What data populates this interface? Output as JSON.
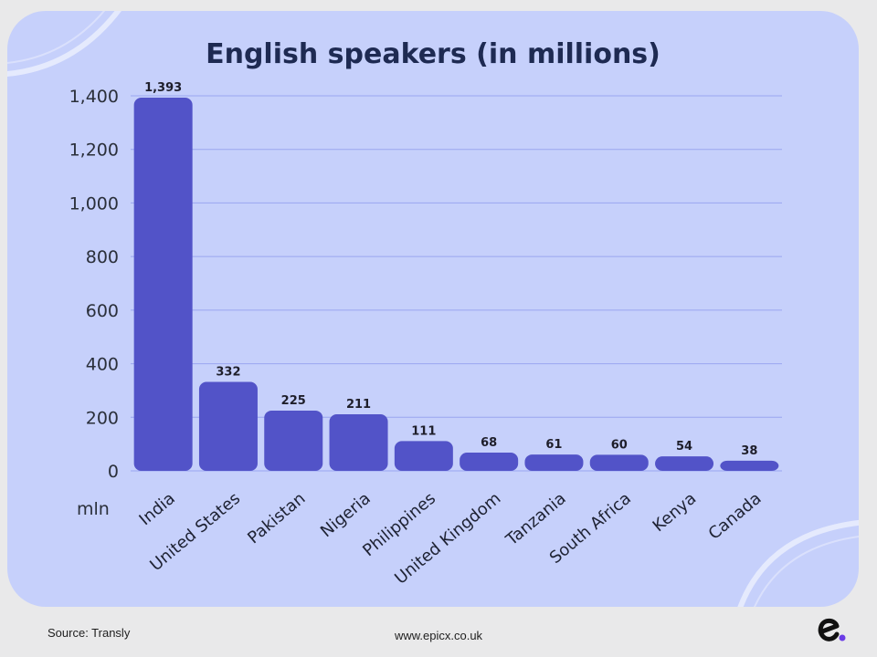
{
  "chart_data": {
    "type": "bar",
    "title": "English speakers (in millions)",
    "unit_label": "mln",
    "categories": [
      "India",
      "United States",
      "Pakistan",
      "Nigeria",
      "Philippines",
      "United Kingdom",
      "Tanzania",
      "South Africa",
      "Kenya",
      "Canada"
    ],
    "values": [
      1393,
      332,
      225,
      211,
      111,
      68,
      61,
      60,
      54,
      38
    ],
    "value_labels": [
      "1,393",
      "332",
      "225",
      "211",
      "111",
      "68",
      "61",
      "60",
      "54",
      "38"
    ],
    "yticks": [
      0,
      200,
      400,
      600,
      800,
      1000,
      1200,
      1400
    ],
    "ytick_labels": [
      "0",
      "200",
      "400",
      "600",
      "800",
      "1,000",
      "1,200",
      "1,400"
    ],
    "ylim": [
      0,
      1400
    ],
    "grid": true,
    "bar_color": "#5253c8",
    "grid_color": "#9aa6f0"
  },
  "footer": {
    "source": "Source: Transly",
    "website": "www.epicx.co.uk"
  },
  "brand": {
    "logo_icon": "epicx-e-logo-icon",
    "logo_color": "#111111",
    "logo_dot_color": "#6b3ce6"
  },
  "colors": {
    "card_background": "#c6d0fb",
    "page_background": "#e9e9ea"
  }
}
